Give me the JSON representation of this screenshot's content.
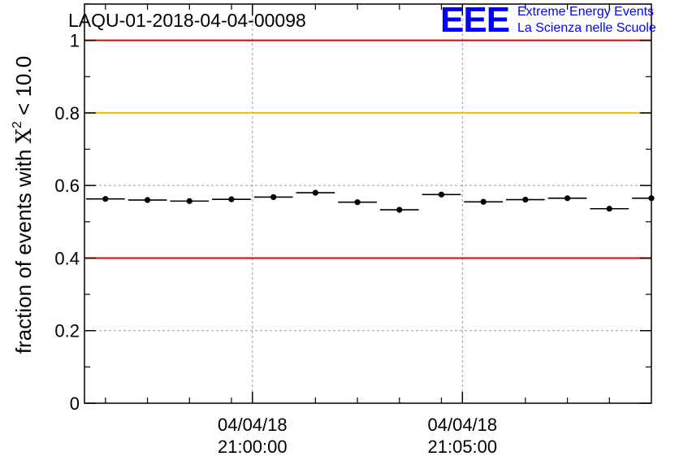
{
  "chart_data": {
    "type": "scatter",
    "title": "LAQU-01-2018-04-04-00098",
    "ylabel_main": "fraction of events with ",
    "ylabel_chi": "X",
    "ylabel_sup": "2",
    "ylabel_tail": " < 10.0",
    "xlabel": "",
    "ylim": [
      0,
      1.1
    ],
    "yticks": [
      0,
      0.2,
      0.4,
      0.6,
      0.8,
      1
    ],
    "ytick_labels": [
      "0",
      "0.2",
      "0.4",
      "0.6",
      "0.8",
      "1"
    ],
    "x_unit": "minutes since 20:56:00",
    "xlim": [
      0,
      13.5
    ],
    "x_major_ticks": [
      4,
      9
    ],
    "x_major_labels": [
      {
        "date": "04/04/18",
        "time": "21:00:00"
      },
      {
        "date": "04/04/18",
        "time": "21:05:00"
      }
    ],
    "x_minor_ticks": [
      0.5,
      1.5,
      2.5,
      3.5,
      5.5,
      6.5,
      7.5,
      8.5,
      10.5,
      11.5,
      12.5
    ],
    "bin_width": 1,
    "points": {
      "x": [
        0.5,
        1.5,
        2.5,
        3.5,
        4.5,
        5.5,
        6.5,
        7.5,
        8.5,
        9.5,
        10.5,
        11.5,
        12.5,
        13.5
      ],
      "y": [
        0.563,
        0.56,
        0.557,
        0.562,
        0.568,
        0.58,
        0.554,
        0.533,
        0.575,
        0.555,
        0.561,
        0.565,
        0.536,
        0.565
      ]
    },
    "reference_lines": [
      {
        "y": 1.0,
        "color": "#dd0000"
      },
      {
        "y": 0.8,
        "color": "#ffbb00"
      },
      {
        "y": 0.4,
        "color": "#dd0000"
      }
    ],
    "grid": true
  },
  "logo": {
    "mark": "EEE",
    "line1": "Extreme Energy Events",
    "line2": "La Scienza nelle Scuole",
    "color": "#0000ff"
  }
}
